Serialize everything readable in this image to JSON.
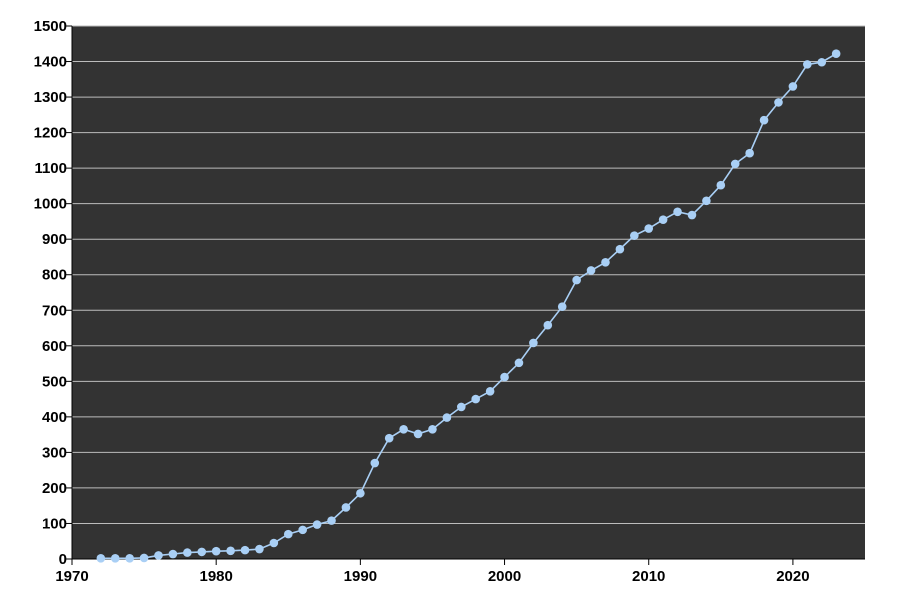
{
  "chart_data": {
    "type": "line",
    "title": "",
    "xlabel": "",
    "ylabel": "",
    "xlim": [
      1970,
      2025
    ],
    "ylim": [
      0,
      1500
    ],
    "x_ticks": [
      1970,
      1980,
      1990,
      2000,
      2010,
      2020
    ],
    "y_ticks": [
      0,
      100,
      200,
      300,
      400,
      500,
      600,
      700,
      800,
      900,
      1000,
      1100,
      1200,
      1300,
      1400,
      1500
    ],
    "grid": {
      "horizontal": true,
      "vertical": false
    },
    "legend": "none",
    "colors": {
      "plot_background": "#333333",
      "series": "#a9cff5",
      "grid": "#bdbdbd",
      "axis": "#000000"
    },
    "series": [
      {
        "x": [
          1972,
          1973,
          1974,
          1975,
          1976,
          1977,
          1978,
          1979,
          1980,
          1981,
          1982,
          1983,
          1984,
          1985,
          1986,
          1987,
          1988,
          1989,
          1990,
          1991,
          1992,
          1993,
          1994,
          1995,
          1996,
          1997,
          1998,
          1999,
          2000,
          2001,
          2002,
          2003,
          2004,
          2005,
          2006,
          2007,
          2008,
          2009,
          2010,
          2011,
          2012,
          2013,
          2014,
          2015,
          2016,
          2017,
          2018,
          2019,
          2020,
          2021,
          2022,
          2023
        ],
        "y": [
          2,
          2,
          2,
          3,
          10,
          14,
          18,
          20,
          22,
          23,
          25,
          28,
          45,
          70,
          82,
          97,
          108,
          145,
          185,
          270,
          340,
          365,
          352,
          365,
          398,
          428,
          450,
          472,
          512,
          552,
          608,
          658,
          710,
          785,
          812,
          835,
          872,
          910,
          930,
          955,
          977,
          968,
          1008,
          1052,
          1112,
          1142,
          1235,
          1285,
          1330,
          1392,
          1398,
          1422
        ]
      }
    ]
  }
}
